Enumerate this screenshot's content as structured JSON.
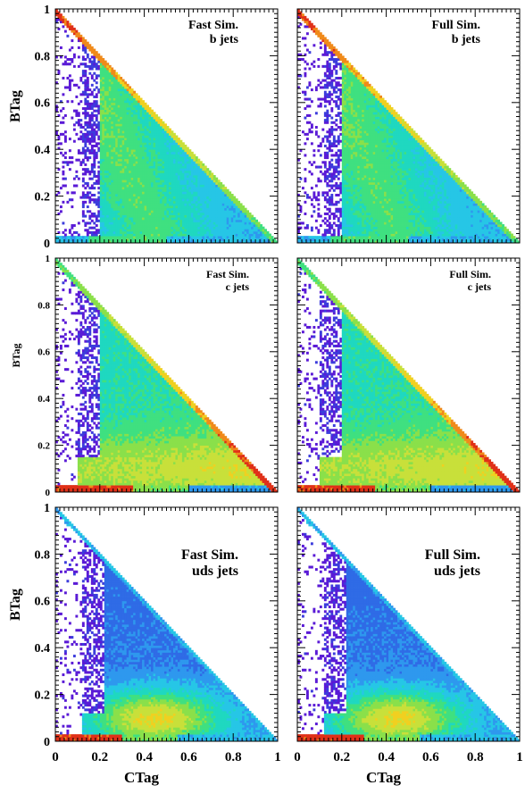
{
  "figure": {
    "columns": [
      "Fast Sim.",
      "Full Sim."
    ],
    "rows": [
      "b jets",
      "c jets",
      "uds jets"
    ]
  },
  "chart_data": [
    {
      "type": "heatmap",
      "title": "",
      "annotation": [
        "Fast Sim.",
        "b jets"
      ],
      "xlabel": "",
      "ylabel": "BTag",
      "xlim": [
        0,
        1
      ],
      "ylim": [
        0,
        1
      ],
      "yticks": [
        "0",
        "0.2",
        "0.4",
        "0.6",
        "0.8",
        "1"
      ],
      "xticks": [],
      "density_hotspots": [
        [
          0.03,
          0.97,
          "red"
        ],
        [
          0.08,
          0.02,
          "yellow"
        ],
        [
          0.3,
          0.4,
          "blue"
        ]
      ],
      "grid": false
    },
    {
      "type": "heatmap",
      "title": "",
      "annotation": [
        "Full Sim.",
        "b jets"
      ],
      "xlabel": "",
      "ylabel": "",
      "xlim": [
        0,
        1
      ],
      "ylim": [
        0,
        1
      ],
      "yticks": [],
      "xticks": [],
      "density_hotspots": [
        [
          0.03,
          0.97,
          "red"
        ],
        [
          0.08,
          0.02,
          "yellow"
        ],
        [
          0.3,
          0.4,
          "blue"
        ]
      ],
      "grid": false
    },
    {
      "type": "heatmap",
      "title": "",
      "annotation": [
        "Fast Sim.",
        "c jets"
      ],
      "xlabel": "",
      "ylabel": "BTag",
      "xlim": [
        0,
        1
      ],
      "ylim": [
        0,
        1
      ],
      "yticks": [
        "0",
        "0.2",
        "0.4",
        "0.6",
        "0.8",
        "1"
      ],
      "xticks": [],
      "density_hotspots": [
        [
          0.2,
          0.03,
          "red"
        ],
        [
          0.95,
          0.05,
          "red"
        ],
        [
          0.5,
          0.2,
          "green"
        ]
      ],
      "grid": false
    },
    {
      "type": "heatmap",
      "title": "",
      "annotation": [
        "Full Sim.",
        "c jets"
      ],
      "xlabel": "",
      "ylabel": "",
      "xlim": [
        0,
        1
      ],
      "ylim": [
        0,
        1
      ],
      "yticks": [],
      "xticks": [],
      "density_hotspots": [
        [
          0.2,
          0.03,
          "red"
        ],
        [
          0.95,
          0.05,
          "red"
        ],
        [
          0.5,
          0.2,
          "green"
        ]
      ],
      "grid": false
    },
    {
      "type": "heatmap",
      "title": "",
      "annotation": [
        "Fast Sim.",
        "uds jets"
      ],
      "xlabel": "CTag",
      "ylabel": "BTag",
      "xlim": [
        0,
        1
      ],
      "ylim": [
        0,
        1
      ],
      "yticks": [
        "0",
        "0.2",
        "0.4",
        "0.6",
        "0.8",
        "1"
      ],
      "xticks": [
        "0",
        "0.2",
        "0.4",
        "0.6",
        "0.8",
        "1"
      ],
      "density_hotspots": [
        [
          0.15,
          0.03,
          "red"
        ],
        [
          0.4,
          0.1,
          "yellow"
        ],
        [
          0.3,
          0.5,
          "blue"
        ]
      ],
      "grid": false
    },
    {
      "type": "heatmap",
      "title": "",
      "annotation": [
        "Full Sim.",
        "uds jets"
      ],
      "xlabel": "CTag",
      "ylabel": "",
      "xlim": [
        0,
        1
      ],
      "ylim": [
        0,
        1
      ],
      "yticks": [],
      "xticks": [
        "0",
        "0.2",
        "0.4",
        "0.6",
        "0.8",
        "1"
      ],
      "density_hotspots": [
        [
          0.15,
          0.03,
          "red"
        ],
        [
          0.4,
          0.1,
          "yellow"
        ],
        [
          0.3,
          0.5,
          "blue"
        ]
      ],
      "grid": false
    }
  ]
}
